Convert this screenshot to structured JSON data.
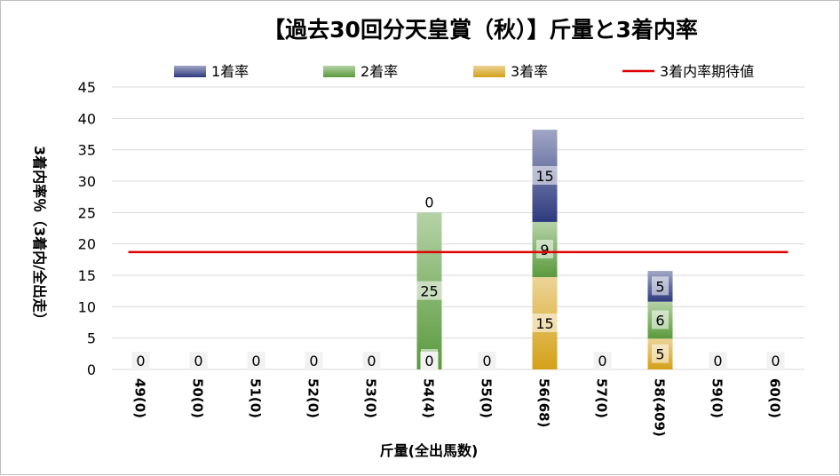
{
  "chart_data": {
    "type": "bar",
    "stacked": true,
    "title": "【過去30回分天皇賞（秋）】斤量と3着内率",
    "xlabel": "斤量(全出馬数)",
    "ylabel": "3着内率％（3着内/全出走）",
    "ylim": [
      0,
      45
    ],
    "yticks": [
      "0",
      "5",
      "10",
      "15",
      "20",
      "25",
      "30",
      "35",
      "40",
      "45"
    ],
    "grid": true,
    "legend_position": "top",
    "categories": [
      "49(0)",
      "50(0)",
      "51(0)",
      "52(0)",
      "53(0)",
      "54(4)",
      "55(0)",
      "56(68)",
      "57(0)",
      "58(409)",
      "59(0)",
      "60(0)"
    ],
    "series": [
      {
        "name": "3着率",
        "color": "#d4a017",
        "values": [
          0,
          0,
          0,
          0,
          0,
          0,
          0,
          14.7,
          0,
          4.9,
          0,
          0
        ]
      },
      {
        "name": "2着率",
        "color": "#5a9a3c",
        "values": [
          0,
          0,
          0,
          0,
          0,
          25,
          0,
          8.8,
          0,
          5.9,
          0,
          0
        ]
      },
      {
        "name": "1着率",
        "color": "#2e3a7e",
        "values": [
          0,
          0,
          0,
          0,
          0,
          0,
          0,
          14.7,
          0,
          4.9,
          0,
          0
        ]
      }
    ],
    "data_labels": {
      "3着率": [
        "",
        "",
        "",
        "",
        "",
        "0",
        "",
        "15",
        "",
        "5",
        "",
        ""
      ],
      "2着率": [
        "",
        "",
        "",
        "",
        "",
        "25",
        "",
        "9",
        "",
        "6",
        "",
        ""
      ],
      "1着率": [
        "",
        "",
        "",
        "",
        "",
        "0",
        "",
        "15",
        "",
        "5",
        "",
        ""
      ]
    },
    "bottom_labels": [
      "0",
      "0",
      "0",
      "0",
      "0",
      "0",
      "0",
      "",
      "0",
      "",
      "0",
      "0"
    ],
    "expected_line": {
      "name": "3着内率期待値",
      "color": "#e00000",
      "value": 18.7
    }
  }
}
